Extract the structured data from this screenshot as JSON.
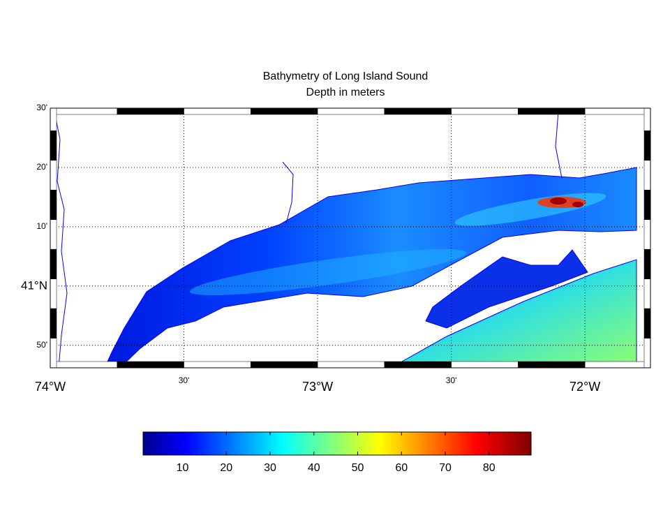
{
  "map": {
    "title": "Bathymetry of Long Island Sound",
    "subtitle": "Depth in meters",
    "lonlim": [
      -74,
      -71.755
    ],
    "latlim": [
      40.77,
      41.5
    ],
    "lat_ticks": [
      {
        "value": 41.5,
        "label": "30'"
      },
      {
        "value": 41.3333,
        "label": "20'"
      },
      {
        "value": 41.1667,
        "label": "10'"
      },
      {
        "value": 41,
        "label": "41°N"
      },
      {
        "value": 40.8333,
        "label": "50'"
      }
    ],
    "lon_ticks": [
      {
        "value": -74,
        "label": "74°W"
      },
      {
        "value": -73.5,
        "label": "30'"
      },
      {
        "value": -73,
        "label": "73°W"
      },
      {
        "value": -72.5,
        "label": "30'"
      },
      {
        "value": -72,
        "label": "72°W"
      }
    ],
    "grid": true,
    "colorbar": {
      "lim": [
        1,
        89.6
      ],
      "ticks": [
        10,
        20,
        30,
        40,
        50,
        60,
        70,
        80
      ],
      "colormap": "jet"
    }
  }
}
